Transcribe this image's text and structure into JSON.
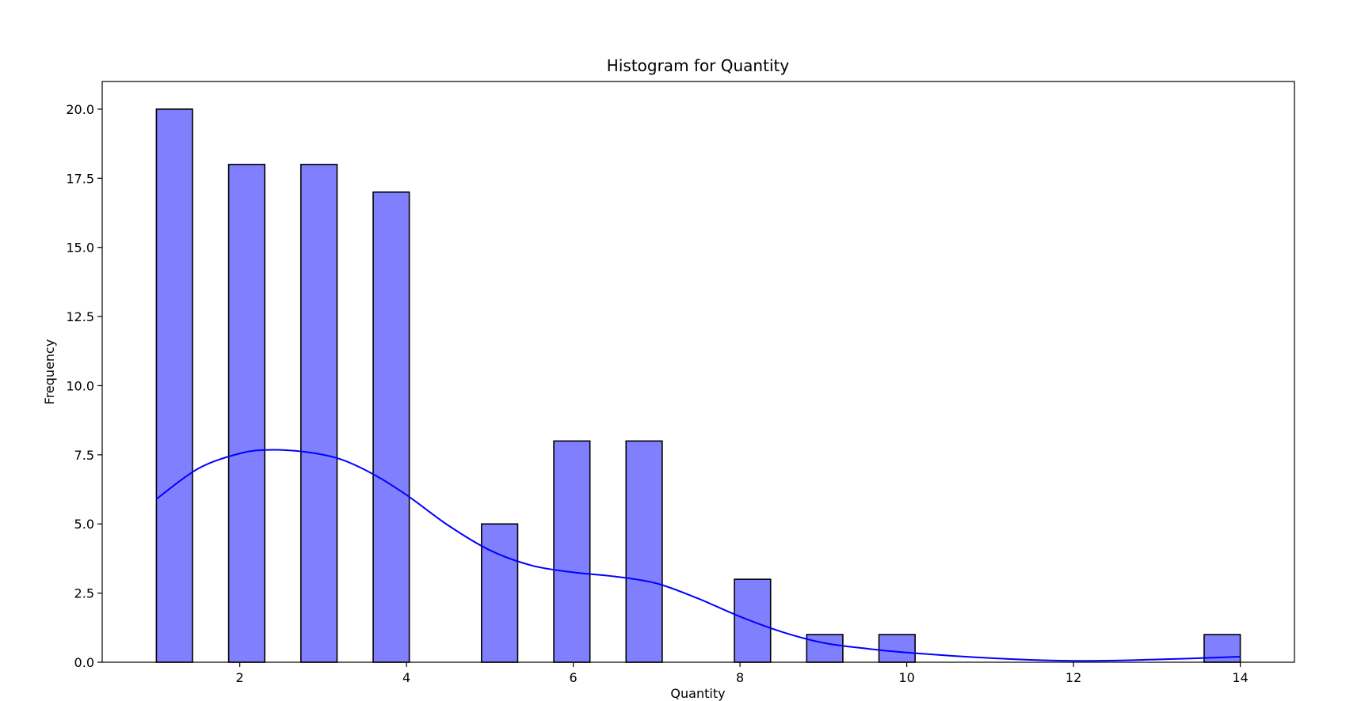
{
  "chart_data": {
    "type": "bar",
    "subtype": "histogram-with-kde",
    "title": "Histogram for Quantity",
    "xlabel": "Quantity",
    "ylabel": "Frequency",
    "xlim": [
      0.35,
      14.65
    ],
    "ylim": [
      0,
      21
    ],
    "xticks": [
      2,
      4,
      6,
      8,
      10,
      12,
      14
    ],
    "xtick_labels": [
      "2",
      "4",
      "6",
      "8",
      "10",
      "12",
      "14"
    ],
    "yticks": [
      0,
      2.5,
      5,
      7.5,
      10,
      12.5,
      15,
      17.5,
      20
    ],
    "ytick_labels": [
      "0.0",
      "2.5",
      "5.0",
      "7.5",
      "10.0",
      "12.5",
      "15.0",
      "17.5",
      "20.0"
    ],
    "grid": false,
    "bins": [
      {
        "x0": 1.0,
        "x1": 1.4333,
        "count": 20
      },
      {
        "x0": 1.8667,
        "x1": 2.3,
        "count": 18
      },
      {
        "x0": 2.7333,
        "x1": 3.1667,
        "count": 18
      },
      {
        "x0": 3.6,
        "x1": 4.0333,
        "count": 17
      },
      {
        "x0": 4.9,
        "x1": 5.3333,
        "count": 5
      },
      {
        "x0": 5.7667,
        "x1": 6.2,
        "count": 8
      },
      {
        "x0": 6.6333,
        "x1": 7.0667,
        "count": 8
      },
      {
        "x0": 7.9333,
        "x1": 8.3667,
        "count": 3
      },
      {
        "x0": 8.8,
        "x1": 9.2333,
        "count": 1
      },
      {
        "x0": 9.6667,
        "x1": 10.1,
        "count": 1
      },
      {
        "x0": 13.5667,
        "x1": 14.0,
        "count": 1
      }
    ],
    "kde": {
      "x": [
        1.0,
        1.5,
        2.0,
        2.35,
        2.8,
        3.2,
        3.6,
        4.0,
        4.5,
        5.0,
        5.5,
        6.0,
        6.5,
        7.0,
        7.5,
        8.0,
        8.5,
        9.0,
        9.5,
        10.0,
        11.0,
        12.0,
        13.0,
        14.0
      ],
      "y": [
        5.9,
        7.0,
        7.55,
        7.68,
        7.6,
        7.35,
        6.8,
        6.05,
        4.95,
        4.05,
        3.5,
        3.25,
        3.1,
        2.85,
        2.3,
        1.65,
        1.1,
        0.7,
        0.5,
        0.35,
        0.15,
        0.05,
        0.1,
        0.2
      ]
    },
    "colors": {
      "bar_fill": "#8080ff",
      "bar_edge": "#000000",
      "kde_line": "#0000ff"
    }
  }
}
